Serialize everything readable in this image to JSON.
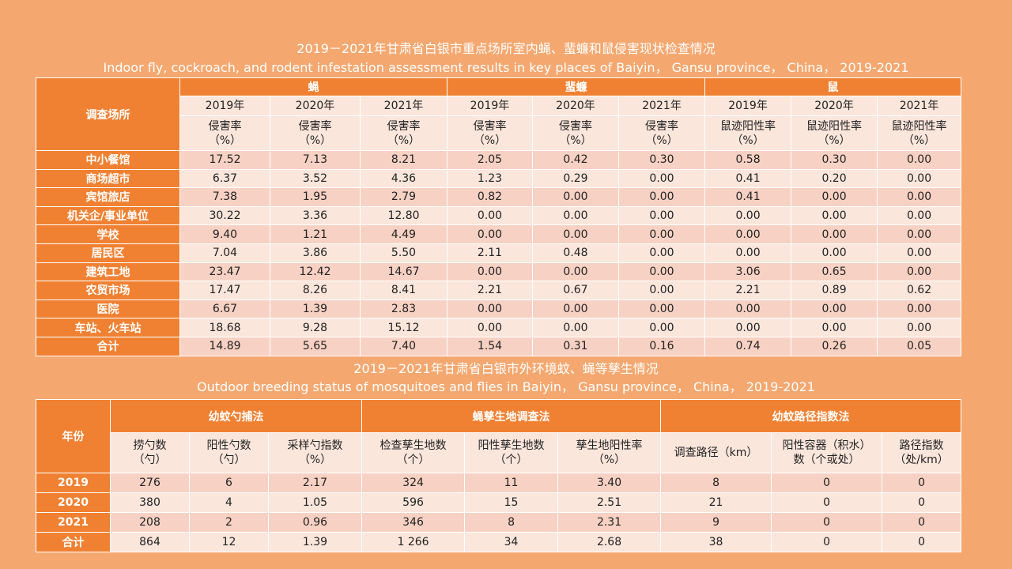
{
  "table1": {
    "title_cn": "2019－2021年甘肃省白银市重点场所室内蝇、蜚蠊和鼠侵害现状检查情况",
    "title_en": "Indoor fly, cockroach, and rodent infestation assessment results in key places of Baiyin， Gansu province， China， 2019-2021",
    "corner": "调查场所",
    "groups": [
      "蝇",
      "蜚蠊",
      "鼠"
    ],
    "years": [
      "2019年",
      "2020年",
      "2021年",
      "2019年",
      "2020年",
      "2021年",
      "2019年",
      "2020年",
      "2021年"
    ],
    "metrics": [
      "侵害率",
      "侵害率",
      "侵害率",
      "侵害率",
      "侵害率",
      "侵害率",
      "鼠迹阳性率",
      "鼠迹阳性率",
      "鼠迹阳性率"
    ],
    "unit": "（%）",
    "rows": [
      {
        "label": "中小餐馆",
        "values": [
          "17.52",
          "7.13",
          "8.21",
          "2.05",
          "0.42",
          "0.30",
          "0.58",
          "0.30",
          "0.00"
        ]
      },
      {
        "label": "商场超市",
        "values": [
          "6.37",
          "3.52",
          "4.36",
          "1.23",
          "0.29",
          "0.00",
          "0.41",
          "0.20",
          "0.00"
        ]
      },
      {
        "label": "宾馆旅店",
        "values": [
          "7.38",
          "1.95",
          "2.79",
          "0.82",
          "0.00",
          "0.00",
          "0.41",
          "0.00",
          "0.00"
        ]
      },
      {
        "label": "机关企/事业单位",
        "values": [
          "30.22",
          "3.36",
          "12.80",
          "0.00",
          "0.00",
          "0.00",
          "0.00",
          "0.00",
          "0.00"
        ]
      },
      {
        "label": "学校",
        "values": [
          "9.40",
          "1.21",
          "4.49",
          "0.00",
          "0.00",
          "0.00",
          "0.00",
          "0.00",
          "0.00"
        ]
      },
      {
        "label": "居民区",
        "values": [
          "7.04",
          "3.86",
          "5.50",
          "2.11",
          "0.48",
          "0.00",
          "0.00",
          "0.00",
          "0.00"
        ]
      },
      {
        "label": "建筑工地",
        "values": [
          "23.47",
          "12.42",
          "14.67",
          "0.00",
          "0.00",
          "0.00",
          "3.06",
          "0.65",
          "0.00"
        ]
      },
      {
        "label": "农贸市场",
        "values": [
          "17.47",
          "8.26",
          "8.41",
          "2.21",
          "0.67",
          "0.00",
          "2.21",
          "0.89",
          "0.62"
        ]
      },
      {
        "label": "医院",
        "values": [
          "6.67",
          "1.39",
          "2.83",
          "0.00",
          "0.00",
          "0.00",
          "0.00",
          "0.00",
          "0.00"
        ]
      },
      {
        "label": "车站、火车站",
        "values": [
          "18.68",
          "9.28",
          "15.12",
          "0.00",
          "0.00",
          "0.00",
          "0.00",
          "0.00",
          "0.00"
        ]
      },
      {
        "label": "合计",
        "values": [
          "14.89",
          "5.65",
          "7.40",
          "1.54",
          "0.31",
          "0.16",
          "0.74",
          "0.26",
          "0.05"
        ]
      }
    ]
  },
  "table2": {
    "title_cn": "2019－2021年甘肃省白银市外环境蚊、蝇等孳生情况",
    "title_en": "Outdoor breeding status of mosquitoes and flies in Baiyin， Gansu province， China， 2019-2021",
    "corner": "年份",
    "groups": [
      "幼蚊勺捕法",
      "蝇孳生地调查法",
      "幼蚊路径指数法"
    ],
    "columns": [
      {
        "l1": "捞勺数",
        "l2": "（勺）"
      },
      {
        "l1": "阳性勺数",
        "l2": "（勺）"
      },
      {
        "l1": "采样勺指数",
        "l2": "（%）"
      },
      {
        "l1": "检查孳生地数",
        "l2": "（个）"
      },
      {
        "l1": "阳性孳生地数",
        "l2": "（个）"
      },
      {
        "l1": "孳生地阳性率",
        "l2": "（%）"
      },
      {
        "l1": "调查路径（km）",
        "l2": ""
      },
      {
        "l1": "阳性容器（积水）",
        "l2": "数（个或处）"
      },
      {
        "l1": "路径指数",
        "l2": "（处/km）"
      }
    ],
    "rows": [
      {
        "label": "2019",
        "values": [
          "276",
          "6",
          "2.17",
          "324",
          "11",
          "3.40",
          "8",
          "0",
          "0"
        ]
      },
      {
        "label": "2020",
        "values": [
          "380",
          "4",
          "1.05",
          "596",
          "15",
          "2.51",
          "21",
          "0",
          "0"
        ]
      },
      {
        "label": "2021",
        "values": [
          "208",
          "2",
          "0.96",
          "346",
          "8",
          "2.31",
          "9",
          "0",
          "0"
        ]
      },
      {
        "label": "合计",
        "values": [
          "864",
          "12",
          "1.39",
          "1 266",
          "34",
          "2.68",
          "38",
          "0",
          "0"
        ]
      }
    ]
  }
}
